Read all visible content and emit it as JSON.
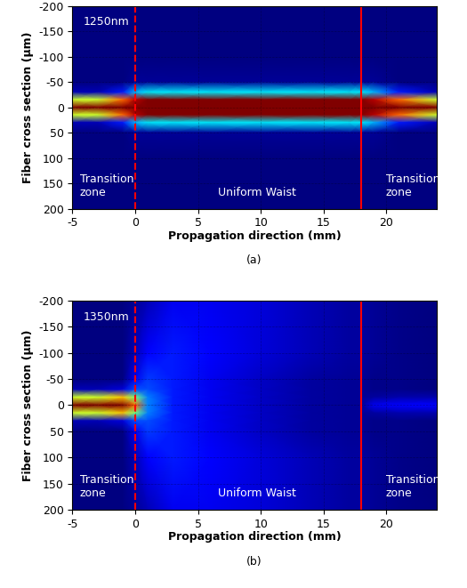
{
  "chart_data": [
    {
      "type": "heatmap",
      "caption": "(a)",
      "label": "1250nm",
      "xlabel": "Propagation direction (mm)",
      "ylabel": "Fiber cross section (μm)",
      "annotations": [
        "Transition\nzone",
        "Uniform Waist",
        "Transition\nzone"
      ],
      "boundaries": [
        0,
        18
      ],
      "xlim": [
        -5,
        24
      ],
      "ylim": [
        200,
        -200
      ],
      "xticks": [
        -5,
        0,
        5,
        10,
        15,
        20
      ],
      "yticks": [
        -200,
        -150,
        -100,
        -50,
        0,
        50,
        100,
        150,
        200
      ],
      "grid": true,
      "x": [
        -5,
        -3,
        -1,
        0,
        1,
        3,
        6,
        10,
        14,
        17,
        18,
        19,
        21,
        24
      ],
      "y": [
        -200,
        -100,
        -50,
        -30,
        -15,
        0,
        15,
        30,
        50,
        100,
        200
      ],
      "values": [
        [
          0,
          0,
          0,
          0,
          0,
          0,
          0,
          0,
          0,
          0,
          0,
          0,
          0,
          0
        ],
        [
          0,
          0,
          0,
          0,
          0,
          0,
          0,
          0,
          0,
          0,
          0,
          0,
          0,
          0
        ],
        [
          0,
          0,
          0,
          0.02,
          0.02,
          0.02,
          0.02,
          0.02,
          0.02,
          0.02,
          0.02,
          0.02,
          0,
          0
        ],
        [
          0.05,
          0.05,
          0.15,
          0.3,
          0.35,
          0.35,
          0.35,
          0.35,
          0.35,
          0.35,
          0.35,
          0.3,
          0.15,
          0.05
        ],
        [
          0.6,
          0.6,
          0.8,
          0.95,
          1,
          1,
          1,
          1,
          1,
          1,
          1,
          0.95,
          0.8,
          0.6
        ],
        [
          1,
          1,
          1,
          1,
          1,
          1,
          1,
          1,
          1,
          1,
          1,
          1,
          1,
          1
        ],
        [
          0.6,
          0.6,
          0.8,
          0.95,
          1,
          1,
          1,
          1,
          1,
          1,
          1,
          0.95,
          0.8,
          0.6
        ],
        [
          0.05,
          0.05,
          0.15,
          0.3,
          0.35,
          0.35,
          0.35,
          0.35,
          0.35,
          0.35,
          0.35,
          0.3,
          0.15,
          0.05
        ],
        [
          0,
          0,
          0,
          0.02,
          0.02,
          0.02,
          0.02,
          0.02,
          0.02,
          0.02,
          0.02,
          0.02,
          0,
          0
        ],
        [
          0,
          0,
          0,
          0,
          0,
          0,
          0,
          0,
          0,
          0,
          0,
          0,
          0,
          0
        ],
        [
          0,
          0,
          0,
          0,
          0,
          0,
          0,
          0,
          0,
          0,
          0,
          0,
          0,
          0
        ]
      ]
    },
    {
      "type": "heatmap",
      "caption": "(b)",
      "label": "1350nm",
      "xlabel": "Propagation direction (mm)",
      "ylabel": "Fiber cross section (μm)",
      "annotations": [
        "Transition\nzone",
        "Uniform Waist",
        "Transition\nzone"
      ],
      "boundaries": [
        0,
        18
      ],
      "xlim": [
        -5,
        24
      ],
      "ylim": [
        200,
        -200
      ],
      "xticks": [
        -5,
        0,
        5,
        10,
        15,
        20
      ],
      "yticks": [
        -200,
        -150,
        -100,
        -50,
        0,
        50,
        100,
        150,
        200
      ],
      "grid": true,
      "x": [
        -5,
        -3,
        -1,
        0,
        1,
        3,
        6,
        10,
        14,
        17,
        18,
        19,
        21,
        24
      ],
      "y": [
        -200,
        -100,
        -50,
        -30,
        -15,
        0,
        15,
        30,
        50,
        100,
        200
      ],
      "values": [
        [
          0,
          0,
          0,
          0.02,
          0.05,
          0.1,
          0.1,
          0.08,
          0.05,
          0.03,
          0.03,
          0.02,
          0.01,
          0
        ],
        [
          0,
          0,
          0,
          0.05,
          0.12,
          0.15,
          0.12,
          0.08,
          0.05,
          0.03,
          0.03,
          0.02,
          0.01,
          0
        ],
        [
          0,
          0,
          0,
          0.1,
          0.18,
          0.15,
          0.1,
          0.06,
          0.03,
          0.02,
          0.02,
          0.01,
          0.01,
          0
        ],
        [
          0.05,
          0.05,
          0.08,
          0.2,
          0.2,
          0.15,
          0.1,
          0.06,
          0.03,
          0.02,
          0.02,
          0.01,
          0.01,
          0
        ],
        [
          0.6,
          0.6,
          0.7,
          0.5,
          0.25,
          0.15,
          0.1,
          0.06,
          0.03,
          0.02,
          0.02,
          0.03,
          0.04,
          0.04
        ],
        [
          1,
          1,
          1,
          0.8,
          0.25,
          0.15,
          0.1,
          0.06,
          0.03,
          0.02,
          0.02,
          0.1,
          0.12,
          0.12
        ],
        [
          0.6,
          0.6,
          0.7,
          0.5,
          0.25,
          0.15,
          0.1,
          0.06,
          0.03,
          0.02,
          0.02,
          0.03,
          0.04,
          0.04
        ],
        [
          0.05,
          0.05,
          0.08,
          0.2,
          0.2,
          0.15,
          0.1,
          0.06,
          0.03,
          0.02,
          0.02,
          0.01,
          0.01,
          0
        ],
        [
          0,
          0,
          0,
          0.1,
          0.18,
          0.15,
          0.1,
          0.06,
          0.03,
          0.02,
          0.02,
          0.01,
          0.01,
          0
        ],
        [
          0,
          0,
          0,
          0.05,
          0.12,
          0.15,
          0.12,
          0.08,
          0.05,
          0.03,
          0.03,
          0.02,
          0.01,
          0
        ],
        [
          0,
          0,
          0,
          0.02,
          0.05,
          0.1,
          0.1,
          0.08,
          0.05,
          0.03,
          0.03,
          0.02,
          0.01,
          0
        ]
      ]
    }
  ]
}
